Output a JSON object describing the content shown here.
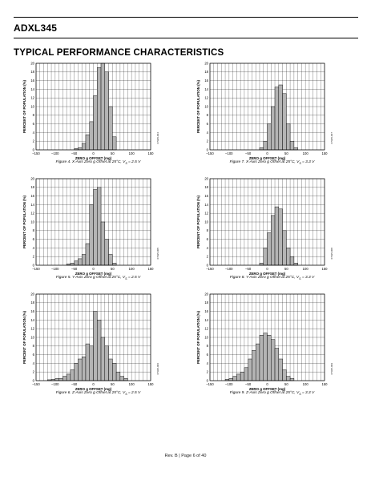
{
  "header": {
    "title": "ADXL345"
  },
  "section": {
    "title": "TYPICAL PERFORMANCE CHARACTERISTICS"
  },
  "footer": {
    "text": "Rev. B | Page 6 of 40"
  },
  "style": {
    "bar_fill": "#b4b4b4",
    "bar_stroke": "#000000",
    "grid_color": "#000000"
  },
  "chart_data": [
    {
      "type": "bar",
      "id": "fig4",
      "caption": {
        "pre": "Figure 4. X-Axis Zero ",
        "g": "g",
        "post": " Offset at 25°C, V",
        "sub": "S",
        "tail": " = 2.5 V"
      },
      "figure_code": "07925-004",
      "xlabel": "ZERO g OFFSET (mg)",
      "ylabel": "PERCENT OF POPULATION (%)",
      "xlim": [
        -150,
        150
      ],
      "ylim": [
        0,
        20
      ],
      "xticks": [
        "–150",
        "–100",
        "–50",
        "0",
        "50",
        "100",
        "150"
      ],
      "yticks": [
        "0",
        "2",
        "4",
        "6",
        "8",
        "10",
        "12",
        "14",
        "16",
        "18",
        "20"
      ],
      "grid": true,
      "bin_width": 10,
      "bin_starts": [
        -50,
        -40,
        -30,
        -20,
        -10,
        0,
        10,
        20,
        30,
        40,
        50
      ],
      "values": [
        0.3,
        0.5,
        1.5,
        3.5,
        6.5,
        12.5,
        19.0,
        20.0,
        18.0,
        10.0,
        3.0
      ]
    },
    {
      "type": "bar",
      "id": "fig5",
      "caption": {
        "pre": "Figure 5. Y-Axis Zero ",
        "g": "g",
        "post": " Offset at 25°C, V",
        "sub": "S",
        "tail": " = 2.5 V"
      },
      "figure_code": "07925-005",
      "xlabel": "ZERO g OFFSET (mg)",
      "ylabel": "PERCENT OF POPULATION (%)",
      "xlim": [
        -150,
        150
      ],
      "ylim": [
        0,
        20
      ],
      "xticks": [
        "–150",
        "–100",
        "–50",
        "0",
        "50",
        "100",
        "150"
      ],
      "yticks": [
        "0",
        "2",
        "4",
        "6",
        "8",
        "10",
        "12",
        "14",
        "16",
        "18",
        "20"
      ],
      "grid": true,
      "bin_width": 10,
      "bin_starts": [
        -70,
        -60,
        -50,
        -40,
        -30,
        -20,
        -10,
        0,
        10,
        20,
        30,
        40,
        50
      ],
      "values": [
        0.3,
        0.5,
        1.0,
        1.5,
        2.5,
        5.0,
        14.0,
        17.5,
        18.0,
        10.0,
        6.0,
        2.5,
        0.5
      ]
    },
    {
      "type": "bar",
      "id": "fig6",
      "caption": {
        "pre": "Figure 6. Z-Axis Zero ",
        "g": "g",
        "post": " Offset at 25°C, V",
        "sub": "S",
        "tail": " = 2.5 V"
      },
      "figure_code": "07925-006",
      "xlabel": "ZERO g OFFSET (mg)",
      "ylabel": "PERCENT OF POPULATION (%)",
      "xlim": [
        -150,
        150
      ],
      "ylim": [
        0,
        20
      ],
      "xticks": [
        "–150",
        "–100",
        "–50",
        "0",
        "50",
        "100",
        "150"
      ],
      "yticks": [
        "0",
        "2",
        "4",
        "6",
        "8",
        "10",
        "12",
        "14",
        "16",
        "18",
        "20"
      ],
      "grid": true,
      "bin_width": 10,
      "bin_starts": [
        -120,
        -110,
        -100,
        -90,
        -80,
        -70,
        -60,
        -50,
        -40,
        -30,
        -20,
        -10,
        0,
        10,
        20,
        30,
        40,
        50,
        60,
        70,
        80
      ],
      "values": [
        0.2,
        0.3,
        0.5,
        0.5,
        1.0,
        1.5,
        2.5,
        4.0,
        5.0,
        5.5,
        8.5,
        8.0,
        16.0,
        14.0,
        10.0,
        8.0,
        5.0,
        4.0,
        2.0,
        1.0,
        0.5
      ]
    },
    {
      "type": "bar",
      "id": "fig7",
      "caption": {
        "pre": "Figure 7. X-Axis Zero ",
        "g": "g",
        "post": " Offset at 25°C, V",
        "sub": "S",
        "tail": " = 3.3 V"
      },
      "figure_code": "07925-007",
      "xlabel": "ZERO g OFFSET (mg)",
      "ylabel": "PERCENT OF POPULATION (%)",
      "xlim": [
        -150,
        150
      ],
      "ylim": [
        0,
        20
      ],
      "xticks": [
        "–150",
        "–100",
        "–50",
        "0",
        "50",
        "100",
        "150"
      ],
      "yticks": [
        "0",
        "2",
        "4",
        "6",
        "8",
        "10",
        "12",
        "14",
        "16",
        "18",
        "20"
      ],
      "grid": true,
      "bin_width": 10,
      "bin_starts": [
        -20,
        -10,
        0,
        10,
        20,
        30,
        40,
        50,
        60,
        70
      ],
      "values": [
        0.5,
        2.0,
        6.0,
        10.0,
        14.5,
        15.0,
        13.0,
        6.0,
        2.0,
        0.5
      ]
    },
    {
      "type": "bar",
      "id": "fig8",
      "caption": {
        "pre": "Figure 8. Y-Axis Zero ",
        "g": "g",
        "post": " Offset at 25°C, V",
        "sub": "S",
        "tail": " = 3.3 V"
      },
      "figure_code": "07925-008",
      "xlabel": "ZERO g OFFSET (mg)",
      "ylabel": "PERCENT OF POPULATION (%)",
      "xlim": [
        -150,
        150
      ],
      "ylim": [
        0,
        20
      ],
      "xticks": [
        "–150",
        "–100",
        "–50",
        "0",
        "50",
        "100",
        "150"
      ],
      "yticks": [
        "0",
        "2",
        "4",
        "6",
        "8",
        "10",
        "12",
        "14",
        "16",
        "18",
        "20"
      ],
      "grid": true,
      "bin_width": 10,
      "bin_starts": [
        -20,
        -10,
        0,
        10,
        20,
        30,
        40,
        50,
        60,
        70
      ],
      "values": [
        0.5,
        4.0,
        7.5,
        11.5,
        13.5,
        13.0,
        8.0,
        4.0,
        2.0,
        0.5
      ]
    },
    {
      "type": "bar",
      "id": "fig9",
      "caption": {
        "pre": "Figure 9. Z-Axis Zero ",
        "g": "g",
        "post": " Offset at 25°C, V",
        "sub": "S",
        "tail": " = 3.3 V"
      },
      "figure_code": "07925-009",
      "xlabel": "ZERO g OFFSET (mg)",
      "ylabel": "PERCENT OF POPULATION (%)",
      "xlim": [
        -150,
        150
      ],
      "ylim": [
        0,
        20
      ],
      "xticks": [
        "–150",
        "–100",
        "–50",
        "0",
        "50",
        "100",
        "150"
      ],
      "yticks": [
        "0",
        "2",
        "4",
        "6",
        "8",
        "10",
        "12",
        "14",
        "16",
        "18",
        "20"
      ],
      "grid": true,
      "bin_width": 10,
      "bin_starts": [
        -110,
        -100,
        -90,
        -80,
        -70,
        -60,
        -50,
        -40,
        -30,
        -20,
        -10,
        0,
        10,
        20,
        30,
        40,
        50,
        60
      ],
      "values": [
        0.3,
        0.5,
        1.0,
        1.5,
        2.0,
        3.0,
        5.0,
        7.0,
        8.5,
        10.5,
        11.0,
        10.5,
        9.5,
        7.5,
        5.0,
        2.5,
        1.0,
        0.5
      ]
    }
  ]
}
